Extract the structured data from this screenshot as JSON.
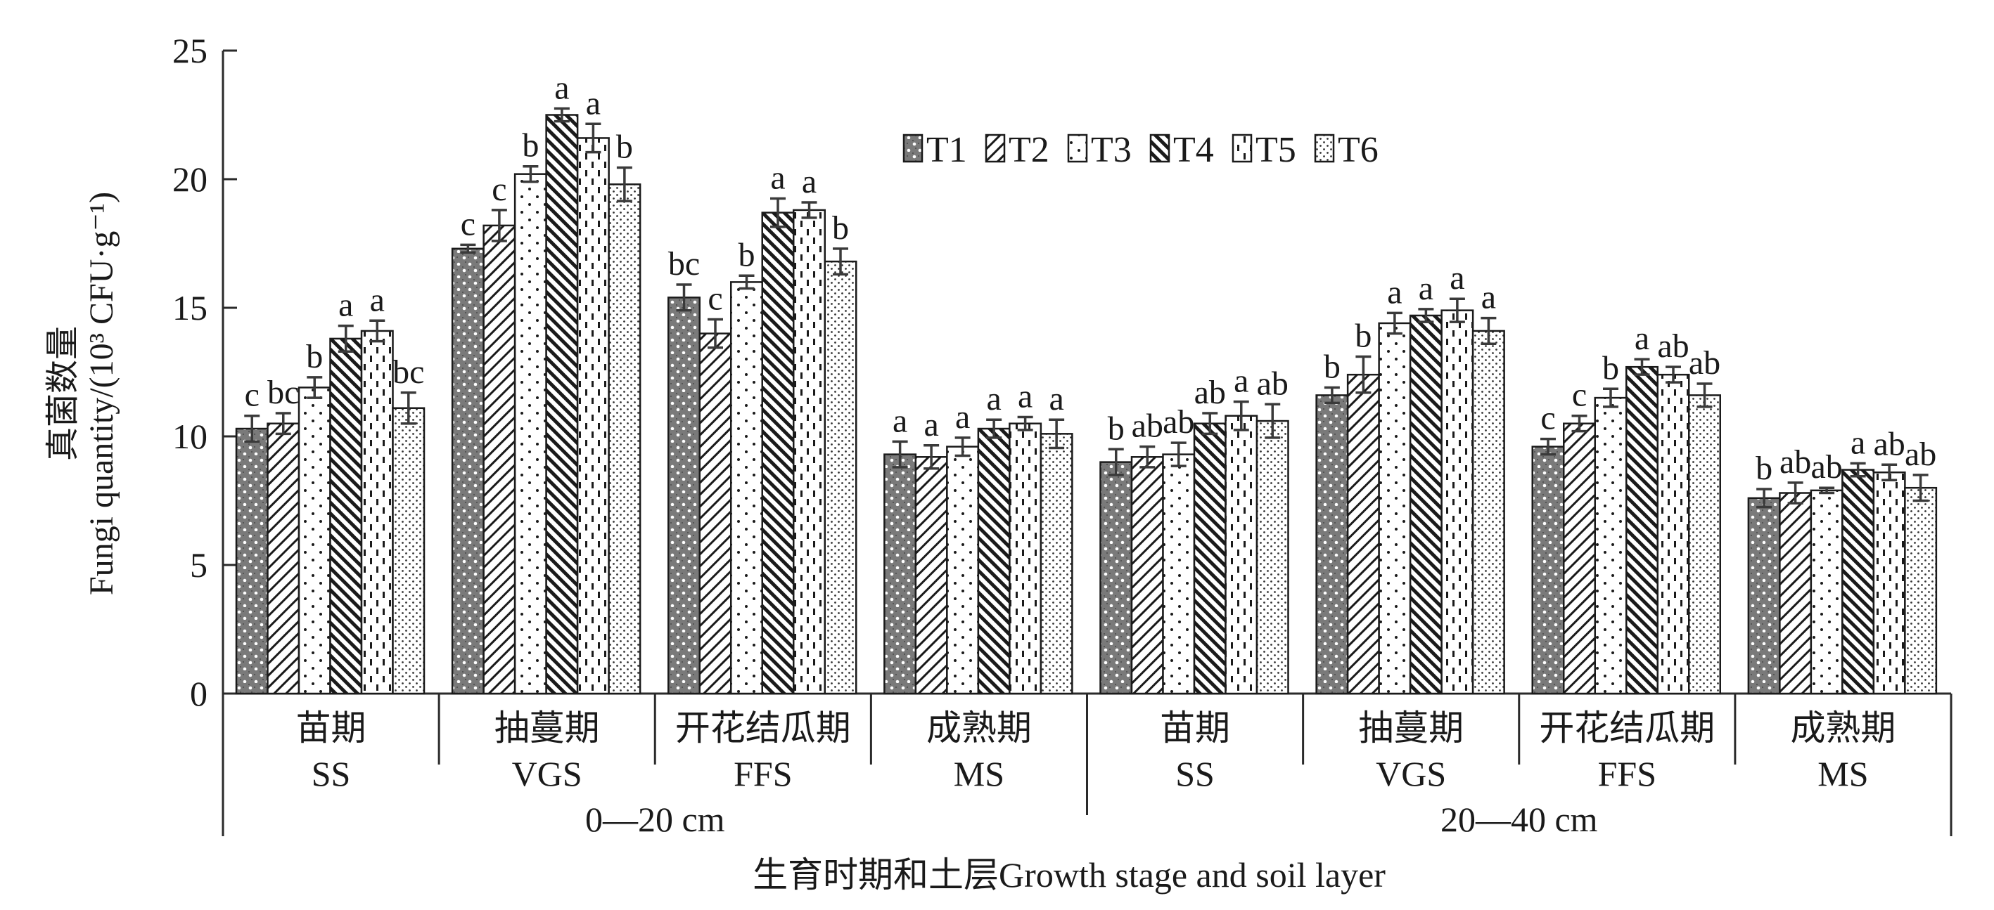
{
  "chart_data": {
    "type": "bar",
    "title": "",
    "ylabel_cn": "真菌数量",
    "ylabel_en": "Fungi quantity/(10³ CFU·g⁻¹)",
    "xlabel": "生育时期和土层Growth stage and soil layer",
    "ylim": [
      0,
      25
    ],
    "yticks": [
      0,
      5,
      10,
      15,
      20,
      25
    ],
    "grid": false,
    "legend_position": "top-center",
    "series_names": [
      "T1",
      "T2",
      "T3",
      "T4",
      "T5",
      "T6"
    ],
    "soil_layers": [
      {
        "label": "0—20 cm",
        "groups": [
          0,
          1,
          2,
          3
        ]
      },
      {
        "label": "20—40 cm",
        "groups": [
          4,
          5,
          6,
          7
        ]
      }
    ],
    "categories": [
      {
        "cn": "苗期",
        "en": "SS",
        "layer": "0—20 cm"
      },
      {
        "cn": "抽蔓期",
        "en": "VGS",
        "layer": "0—20 cm"
      },
      {
        "cn": "开花结瓜期",
        "en": "FFS",
        "layer": "0—20 cm"
      },
      {
        "cn": "成熟期",
        "en": "MS",
        "layer": "0—20 cm"
      },
      {
        "cn": "苗期",
        "en": "SS",
        "layer": "20—40 cm"
      },
      {
        "cn": "抽蔓期",
        "en": "VGS",
        "layer": "20—40 cm"
      },
      {
        "cn": "开花结瓜期",
        "en": "FFS",
        "layer": "20—40 cm"
      },
      {
        "cn": "成熟期",
        "en": "MS",
        "layer": "20—40 cm"
      }
    ],
    "series": [
      {
        "name": "T1",
        "pattern": "dark-dotted",
        "values": [
          10.3,
          17.3,
          15.4,
          9.3,
          9.0,
          11.6,
          9.6,
          7.6
        ],
        "errors": [
          0.5,
          0.15,
          0.5,
          0.5,
          0.5,
          0.3,
          0.3,
          0.35
        ],
        "letters": [
          "c",
          "c",
          "bc",
          "a",
          "b",
          "b",
          "c",
          "b"
        ]
      },
      {
        "name": "T2",
        "pattern": "forward-diagonal",
        "values": [
          10.5,
          18.2,
          14.0,
          9.2,
          9.2,
          12.4,
          10.5,
          7.8
        ],
        "errors": [
          0.4,
          0.6,
          0.55,
          0.45,
          0.4,
          0.7,
          0.3,
          0.4
        ],
        "letters": [
          "bc",
          "c",
          "c",
          "a",
          "ab",
          "b",
          "c",
          "ab"
        ]
      },
      {
        "name": "T3",
        "pattern": "sparse-dots",
        "values": [
          11.9,
          20.2,
          16.0,
          9.6,
          9.3,
          14.4,
          11.5,
          7.9
        ],
        "errors": [
          0.4,
          0.3,
          0.25,
          0.35,
          0.45,
          0.4,
          0.35,
          0.1
        ],
        "letters": [
          "b",
          "b",
          "b",
          "a",
          "ab",
          "a",
          "b",
          "ab"
        ]
      },
      {
        "name": "T4",
        "pattern": "back-diagonal",
        "values": [
          13.8,
          22.5,
          18.7,
          10.3,
          10.5,
          14.7,
          12.7,
          8.7
        ],
        "errors": [
          0.5,
          0.25,
          0.55,
          0.35,
          0.4,
          0.25,
          0.3,
          0.25
        ],
        "letters": [
          "a",
          "a",
          "a",
          "a",
          "ab",
          "a",
          "a",
          "a"
        ]
      },
      {
        "name": "T5",
        "pattern": "dashed-vertical",
        "values": [
          14.1,
          21.6,
          18.8,
          10.5,
          10.8,
          14.9,
          12.4,
          8.6
        ],
        "errors": [
          0.4,
          0.55,
          0.3,
          0.25,
          0.55,
          0.45,
          0.3,
          0.3
        ],
        "letters": [
          "a",
          "a",
          "a",
          "a",
          "a",
          "a",
          "ab",
          "ab"
        ]
      },
      {
        "name": "T6",
        "pattern": "fine-dots",
        "values": [
          11.1,
          19.8,
          16.8,
          10.1,
          10.6,
          14.1,
          11.6,
          8.0
        ],
        "errors": [
          0.6,
          0.65,
          0.5,
          0.55,
          0.65,
          0.5,
          0.45,
          0.5
        ],
        "letters": [
          "bc",
          "b",
          "b",
          "a",
          "ab",
          "a",
          "ab",
          "ab"
        ]
      }
    ]
  }
}
